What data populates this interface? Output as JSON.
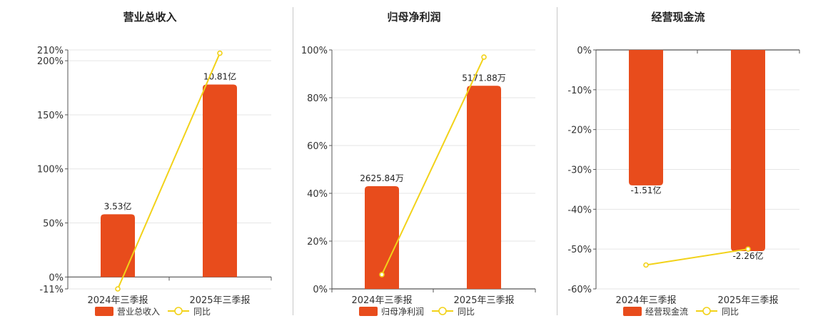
{
  "colors": {
    "bar": "#e84c1c",
    "line": "#f2d219",
    "marker_fill": "#ffffff",
    "grid": "#e6e6e6",
    "axis": "#555555"
  },
  "chart_data": [
    {
      "type": "bar",
      "title": "营业总收入",
      "categories": [
        "2024年三季报",
        "2025年三季报"
      ],
      "series": [
        {
          "name": "营业总收入",
          "type": "bar",
          "values_pct": [
            58,
            178
          ],
          "labels": [
            "3.53亿",
            "10.81亿"
          ]
        },
        {
          "name": "同比",
          "type": "line",
          "values_pct": [
            -11,
            207
          ]
        }
      ],
      "ylim": [
        -11,
        210
      ],
      "yticks": [
        -11,
        0,
        50,
        100,
        150,
        200,
        210
      ],
      "ytick_labels": [
        "-11%",
        "0%",
        "50%",
        "100%",
        "150%",
        "200%",
        "210%"
      ],
      "grid": true,
      "legend": "bottom"
    },
    {
      "type": "bar",
      "title": "归母净利润",
      "categories": [
        "2024年三季报",
        "2025年三季报"
      ],
      "series": [
        {
          "name": "归母净利润",
          "type": "bar",
          "values_pct": [
            43,
            85
          ],
          "labels": [
            "2625.84万",
            "5171.88万"
          ]
        },
        {
          "name": "同比",
          "type": "line",
          "values_pct": [
            6,
            97
          ]
        }
      ],
      "ylim": [
        0,
        100
      ],
      "yticks": [
        0,
        20,
        40,
        60,
        80,
        100
      ],
      "ytick_labels": [
        "0%",
        "20%",
        "40%",
        "60%",
        "80%",
        "100%"
      ],
      "grid": true,
      "legend": "bottom"
    },
    {
      "type": "bar",
      "title": "经营现金流",
      "categories": [
        "2024年三季报",
        "2025年三季报"
      ],
      "series": [
        {
          "name": "经营现金流",
          "type": "bar",
          "values_pct": [
            -34,
            -50.5
          ],
          "labels": [
            "-1.51亿",
            "-2.26亿"
          ]
        },
        {
          "name": "同比",
          "type": "line",
          "values_pct": [
            -54,
            -50
          ]
        }
      ],
      "ylim": [
        -60,
        0
      ],
      "yticks": [
        -60,
        -50,
        -40,
        -30,
        -20,
        -10,
        0
      ],
      "ytick_labels": [
        "-60%",
        "-50%",
        "-40%",
        "-30%",
        "-20%",
        "-10%",
        "0%"
      ],
      "grid": true,
      "legend": "bottom"
    }
  ]
}
